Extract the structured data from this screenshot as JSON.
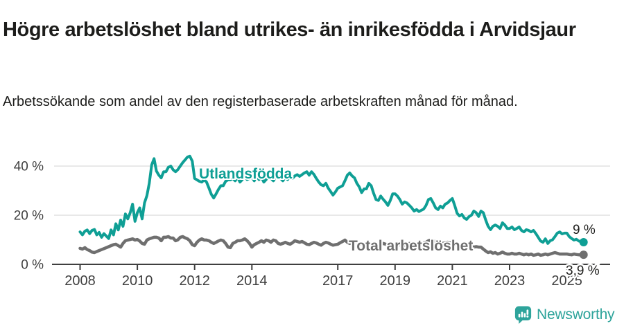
{
  "header": {
    "title": "Högre arbetslöshet bland utrikes- än inrikesfödda i Arvidsjaur",
    "subtitle": "Arbetssökande som andel av den registerbaserade arbetskraften månad för månad."
  },
  "footer": {
    "brand": "Newsworthy"
  },
  "colors": {
    "foreign_born_line": "#0f9f95",
    "total_line": "#6f6f6f",
    "grid": "#e0e0e0",
    "axis": "#3f3f3f",
    "text": "#1d1d1b",
    "brand_teal": "#2ea49b"
  },
  "chart_data": {
    "type": "line",
    "title": "Högre arbetslöshet bland utrikes- än inrikesfödda i Arvidsjaur",
    "subtitle": "Arbetssökande som andel av den registerbaserade arbetskraften månad för månad.",
    "unit": "%",
    "x_start": "2008-01",
    "x_end": "2025-08",
    "x_frequency": "monthly",
    "x_tick_years": [
      2008,
      2010,
      2012,
      2014,
      2017,
      2019,
      2021,
      2023,
      2025
    ],
    "y_ticks": [
      {
        "value": 0,
        "label": "0 %"
      },
      {
        "value": 20,
        "label": "20 %"
      },
      {
        "value": 40,
        "label": "40 %"
      }
    ],
    "ylim": [
      0,
      45
    ],
    "grid": true,
    "legend_position": "inline-labels",
    "series": [
      {
        "name": "Utlandsfödda",
        "color": "#0f9f95",
        "end_label": "9 %",
        "last_value": 9.0,
        "values": [
          13.2,
          12.0,
          13.5,
          14.0,
          12.5,
          13.8,
          14.2,
          12.0,
          13.0,
          11.0,
          12.5,
          11.5,
          10.5,
          14.0,
          12.0,
          16.5,
          14.0,
          18.0,
          15.5,
          20.5,
          18.5,
          21.0,
          24.5,
          17.5,
          21.0,
          23.0,
          18.5,
          25.0,
          28.0,
          33.0,
          40.5,
          43.0,
          38.0,
          36.3,
          35.2,
          37.7,
          37.7,
          39.5,
          40.0,
          38.5,
          37.7,
          38.6,
          40.0,
          41.4,
          42.5,
          43.7,
          44.0,
          42.0,
          35.0,
          34.4,
          33.8,
          33.5,
          34.4,
          33.5,
          31.0,
          28.5,
          27.0,
          28.7,
          30.5,
          32.0,
          32.0,
          33.8,
          34.4,
          34.4,
          35.0,
          34.0,
          35.5,
          33.5,
          34.5,
          36.0,
          34.5,
          35.0,
          35.5,
          34.0,
          36.0,
          34.5,
          35.5,
          33.5,
          34.5,
          36.0,
          35.0,
          34.0,
          35.5,
          36.0,
          35.0,
          34.0,
          35.5,
          34.5,
          35.8,
          35.0,
          36.0,
          36.5,
          35.8,
          36.5,
          37.2,
          37.7,
          36.3,
          37.7,
          36.6,
          35.0,
          33.5,
          32.4,
          32.0,
          33.0,
          31.0,
          29.6,
          28.2,
          29.5,
          31.0,
          31.5,
          32.0,
          34.0,
          36.3,
          37.2,
          36.0,
          35.2,
          33.0,
          31.5,
          29.2,
          30.7,
          30.7,
          33.0,
          32.0,
          29.0,
          26.4,
          26.0,
          27.8,
          26.5,
          25.4,
          24.0,
          26.0,
          28.7,
          28.7,
          27.8,
          26.4,
          24.5,
          25.4,
          25.0,
          24.0,
          23.0,
          21.7,
          22.3,
          21.5,
          22.0,
          22.5,
          24.0,
          26.4,
          26.8,
          25.0,
          23.0,
          22.3,
          23.7,
          23.0,
          24.5,
          25.0,
          26.0,
          26.8,
          24.0,
          20.8,
          19.7,
          20.3,
          18.9,
          18.3,
          19.4,
          20.0,
          21.7,
          21.0,
          19.5,
          21.7,
          21.0,
          18.0,
          15.5,
          14.1,
          15.5,
          16.0,
          15.5,
          14.6,
          16.9,
          16.0,
          14.6,
          14.6,
          15.2,
          14.1,
          14.6,
          15.2,
          13.8,
          13.2,
          14.1,
          13.8,
          13.2,
          13.8,
          12.5,
          11.0,
          9.5,
          9.0,
          10.4,
          8.5,
          9.6,
          10.0,
          11.3,
          12.7,
          13.2,
          12.4,
          12.7,
          12.7,
          11.3,
          10.5,
          9.9,
          10.2,
          9.5,
          9.2,
          9.0
        ]
      },
      {
        "name": "Total arbetslöshet",
        "color": "#6f6f6f",
        "end_label": "3,9 %",
        "last_value": 3.9,
        "values": [
          6.5,
          6.2,
          6.8,
          6.0,
          5.6,
          5.0,
          4.8,
          5.2,
          5.6,
          6.0,
          6.4,
          6.8,
          7.2,
          7.6,
          8.0,
          8.2,
          7.6,
          7.0,
          8.5,
          9.6,
          9.9,
          10.1,
          10.4,
          9.9,
          10.1,
          9.5,
          8.5,
          8.2,
          9.9,
          10.4,
          10.7,
          11.0,
          11.0,
          10.7,
          9.6,
          11.0,
          11.0,
          11.3,
          10.7,
          10.7,
          9.6,
          10.0,
          11.0,
          11.3,
          10.8,
          10.4,
          9.6,
          8.0,
          7.6,
          9.0,
          9.9,
          10.4,
          9.9,
          9.9,
          9.6,
          9.0,
          8.5,
          9.0,
          9.5,
          9.9,
          9.6,
          8.5,
          7.0,
          6.8,
          8.5,
          9.0,
          9.6,
          9.6,
          9.9,
          10.4,
          9.6,
          8.5,
          7.0,
          8.0,
          8.5,
          9.0,
          9.6,
          9.0,
          9.9,
          9.6,
          9.0,
          9.9,
          9.6,
          8.5,
          8.2,
          8.5,
          9.0,
          8.5,
          8.2,
          8.8,
          9.6,
          9.3,
          9.0,
          9.3,
          8.8,
          8.2,
          8.0,
          8.5,
          9.0,
          8.7,
          8.2,
          7.8,
          8.5,
          9.0,
          8.7,
          8.2,
          7.8,
          8.0,
          8.2,
          8.8,
          9.3,
          9.9,
          9.0,
          8.5,
          9.0,
          9.6,
          9.0,
          8.5,
          8.2,
          8.5,
          8.8,
          9.0,
          8.5,
          8.2,
          7.8,
          7.5,
          8.0,
          8.5,
          8.2,
          7.8,
          7.5,
          7.8,
          8.2,
          8.5,
          8.0,
          7.6,
          7.8,
          8.0,
          8.5,
          8.2,
          7.8,
          8.0,
          8.2,
          8.5,
          8.8,
          9.0,
          9.6,
          9.9,
          9.6,
          9.3,
          9.0,
          8.8,
          8.5,
          8.8,
          9.0,
          8.8,
          8.5,
          8.2,
          7.8,
          7.5,
          7.2,
          7.0,
          7.2,
          7.5,
          7.2,
          7.0,
          7.2,
          7.0,
          7.0,
          6.2,
          5.4,
          4.8,
          5.1,
          4.5,
          4.8,
          4.2,
          4.5,
          5.0,
          4.5,
          4.2,
          4.2,
          4.5,
          4.2,
          4.2,
          4.5,
          4.2,
          3.9,
          4.2,
          3.9,
          4.2,
          3.7,
          3.9,
          4.2,
          3.7,
          3.9,
          4.2,
          3.9,
          4.2,
          4.5,
          4.8,
          4.5,
          4.2,
          4.2,
          4.2,
          4.2,
          4.0,
          3.9,
          4.2,
          4.0,
          3.9,
          3.9,
          3.9
        ]
      }
    ]
  }
}
